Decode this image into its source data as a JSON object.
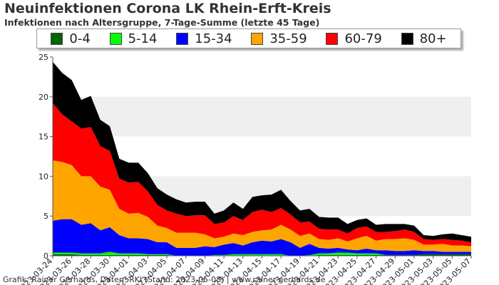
{
  "title": "Neuinfektionen Corona LK Rhein-Erft-Kreis",
  "subtitle": "Infektionen nach Altersgruppe, 7-Tage-Summe (letzte 45 Tage)",
  "footer": "Grafik: Rainer Gerhards, Daten: RKI (Stand: 2023-05-08) | www.rainer-gerhards.de",
  "legend": [
    {
      "label": "0-4",
      "color": "#006400"
    },
    {
      "label": "5-14",
      "color": "#00ff00"
    },
    {
      "label": "15-34",
      "color": "#0000ff"
    },
    {
      "label": "35-59",
      "color": "#ffa500"
    },
    {
      "label": "60-79",
      "color": "#ff0000"
    },
    {
      "label": "80+",
      "color": "#000000"
    }
  ],
  "chart_data": {
    "type": "area",
    "stacked": true,
    "title": "Neuinfektionen Corona LK Rhein-Erft-Kreis",
    "subtitle": "Infektionen nach Altersgruppe, 7-Tage-Summe (letzte 45 Tage)",
    "xlabel": "",
    "ylabel": "",
    "ylim": [
      0,
      25
    ],
    "yticks": [
      0,
      5,
      10,
      15,
      20,
      25
    ],
    "grid": "alternating horizontal bands",
    "legend_position": "top",
    "x": [
      "2023-03-24",
      "2023-03-25",
      "2023-03-26",
      "2023-03-27",
      "2023-03-28",
      "2023-03-29",
      "2023-03-30",
      "2023-03-31",
      "2023-04-01",
      "2023-04-02",
      "2023-04-03",
      "2023-04-04",
      "2023-04-05",
      "2023-04-06",
      "2023-04-07",
      "2023-04-08",
      "2023-04-09",
      "2023-04-10",
      "2023-04-11",
      "2023-04-12",
      "2023-04-13",
      "2023-04-14",
      "2023-04-15",
      "2023-04-16",
      "2023-04-17",
      "2023-04-18",
      "2023-04-19",
      "2023-04-20",
      "2023-04-21",
      "2023-04-22",
      "2023-04-23",
      "2023-04-24",
      "2023-04-25",
      "2023-04-26",
      "2023-04-27",
      "2023-04-28",
      "2023-04-29",
      "2023-04-30",
      "2023-05-01",
      "2023-05-02",
      "2023-05-03",
      "2023-05-04",
      "2023-05-05",
      "2023-05-06",
      "2023-05-07"
    ],
    "x_tick_labels": [
      "2023-03-24",
      "2023-03-26",
      "2023-03-28",
      "2023-03-30",
      "2023-04-01",
      "2023-04-03",
      "2023-04-05",
      "2023-04-07",
      "2023-04-09",
      "2023-04-11",
      "2023-04-13",
      "2023-04-15",
      "2023-04-17",
      "2023-04-19",
      "2023-04-21",
      "2023-04-23",
      "2023-04-25",
      "2023-04-27",
      "2023-04-29",
      "2023-05-01",
      "2023-05-03",
      "2023-05-05",
      "2023-05-07"
    ],
    "series": [
      {
        "name": "0-4",
        "color": "#006400",
        "values": [
          0.2,
          0.2,
          0.2,
          0.1,
          0.1,
          0.1,
          0.1,
          0.1,
          0.1,
          0.1,
          0.1,
          0.1,
          0.1,
          0,
          0,
          0,
          0,
          0,
          0,
          0,
          0,
          0,
          0,
          0,
          0,
          0,
          0,
          0,
          0.1,
          0.1,
          0.1,
          0.1,
          0.1,
          0.1,
          0.1,
          0.1,
          0.1,
          0.1,
          0.1,
          0.2,
          0.2,
          0.2,
          0.2,
          0.2,
          0.2
        ]
      },
      {
        "name": "5-14",
        "color": "#00ff00",
        "values": [
          0.2,
          0.2,
          0.2,
          0.2,
          0.2,
          0.2,
          0.4,
          0.2,
          0.2,
          0.2,
          0.1,
          0.1,
          0.1,
          0,
          0,
          0,
          0,
          0.1,
          0.1,
          0.2,
          0.2,
          0.2,
          0.2,
          0.2,
          0.2,
          0,
          0,
          0.1,
          0.2,
          0.2,
          0.3,
          0.3,
          0.2,
          0.2,
          0.2,
          0,
          0,
          0,
          0,
          0,
          0,
          0,
          0,
          0,
          0
        ]
      },
      {
        "name": "15-34",
        "color": "#0000ff",
        "values": [
          4,
          4.2,
          4.2,
          3.6,
          3.8,
          2.9,
          3.1,
          2.3,
          1.9,
          1.9,
          1.9,
          1.5,
          1.5,
          1,
          1,
          1,
          1.2,
          1,
          1.3,
          1.4,
          1.1,
          1.5,
          1.7,
          1.6,
          1.9,
          1.7,
          1,
          1.4,
          0.7,
          0.6,
          0.6,
          0.4,
          0.4,
          0.6,
          0.4,
          0.6,
          0.5,
          0.5,
          0.6,
          0.4,
          0.4,
          0.3,
          0.3,
          0.3,
          0.3
        ]
      },
      {
        "name": "35-59",
        "color": "#ffa500",
        "values": [
          7.6,
          7.2,
          6.8,
          6.1,
          5.9,
          5.5,
          4.7,
          3.3,
          3.1,
          3.2,
          2.8,
          2.1,
          1.8,
          1.9,
          1.9,
          1.9,
          1.5,
          1.1,
          1,
          1.2,
          1.3,
          1.3,
          1.3,
          1.5,
          1.8,
          1.6,
          1.5,
          1.3,
          1.1,
          1.1,
          1.2,
          1,
          1.5,
          1.6,
          1.2,
          1.4,
          1.5,
          1.6,
          1.3,
          0.8,
          0.8,
          1,
          0.8,
          0.8,
          0.7
        ]
      },
      {
        "name": "60-79",
        "color": "#ff0000",
        "values": [
          7.2,
          6,
          5.5,
          6,
          6.2,
          5.1,
          4.9,
          3.8,
          3.9,
          3.9,
          3.2,
          2.6,
          2.2,
          2.4,
          2.1,
          2.2,
          2.4,
          1.8,
          1.8,
          2.2,
          1.9,
          2.5,
          2.6,
          2.2,
          2.1,
          1.9,
          1.7,
          1.5,
          1.3,
          1.3,
          1.1,
          1,
          1.3,
          1.2,
          1.1,
          0.9,
          1,
          1.1,
          1,
          0.7,
          0.6,
          0.6,
          0.7,
          0.6,
          0.5
        ]
      },
      {
        "name": "80+",
        "color": "#000000",
        "values": [
          5.2,
          5.2,
          5.2,
          3.6,
          3.9,
          3.3,
          3.1,
          2.5,
          2.5,
          2.4,
          2.3,
          2.1,
          2,
          1.8,
          1.7,
          1.7,
          1.7,
          1.3,
          1.5,
          1.7,
          1.4,
          1.9,
          1.8,
          2.2,
          2.3,
          1.7,
          1.5,
          1.6,
          1.5,
          1.5,
          1.5,
          1.2,
          1,
          1,
          0.9,
          1,
          0.9,
          0.7,
          0.8,
          0.5,
          0.5,
          0.6,
          0.8,
          0.7,
          0.7
        ]
      }
    ]
  }
}
